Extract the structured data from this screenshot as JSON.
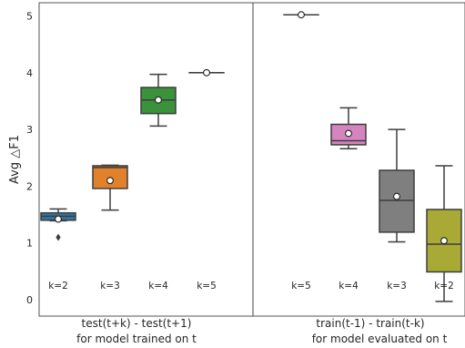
{
  "chart_data": {
    "type": "box",
    "ylabel": "Avg △F1",
    "ylim": [
      -0.3,
      5.25
    ],
    "yticks": [
      "0",
      "1",
      "2",
      "3",
      "4",
      "5"
    ],
    "panels": [
      {
        "xlabel_line1": "test(t+k) - test(t+1)",
        "xlabel_line2": "for model trained on t",
        "boxes": [
          {
            "label": "k=2",
            "color": "#3274a1",
            "whislo": 1.39,
            "q1": 1.4,
            "med": 1.47,
            "q3": 1.53,
            "whishi": 1.6,
            "mean": 1.42,
            "fliers": [
              1.1
            ]
          },
          {
            "label": "k=3",
            "color": "#e1812c",
            "whislo": 1.58,
            "q1": 1.96,
            "med": 2.33,
            "q3": 2.36,
            "whishi": 2.37,
            "mean": 2.1,
            "fliers": []
          },
          {
            "label": "k=4",
            "color": "#3a923a",
            "whislo": 3.06,
            "q1": 3.28,
            "med": 3.52,
            "q3": 3.74,
            "whishi": 3.97,
            "mean": 3.52,
            "fliers": []
          },
          {
            "label": "k=5",
            "color": "#c03d3e",
            "whislo": 4.0,
            "q1": 4.0,
            "med": 4.0,
            "q3": 4.0,
            "whishi": 4.0,
            "mean": 4.0,
            "fliers": []
          }
        ]
      },
      {
        "xlabel_line1": "train(t-1) - train(t-k)",
        "xlabel_line2": "for model evaluated on t",
        "boxes": [
          {
            "label": "k=5",
            "color": "#9372b2",
            "whislo": 5.02,
            "q1": 5.02,
            "med": 5.02,
            "q3": 5.02,
            "whishi": 5.02,
            "mean": 5.02,
            "fliers": []
          },
          {
            "label": "k=4",
            "color": "#d684bd",
            "whislo": 2.66,
            "q1": 2.73,
            "med": 2.8,
            "q3": 3.09,
            "whishi": 3.38,
            "mean": 2.93,
            "fliers": []
          },
          {
            "label": "k=3",
            "color": "#7f7f7f",
            "whislo": 1.02,
            "q1": 1.19,
            "med": 1.75,
            "q3": 2.28,
            "whishi": 3.0,
            "mean": 1.82,
            "fliers": []
          },
          {
            "label": "k=2",
            "color": "#a9aa35",
            "whislo": -0.03,
            "q1": 0.49,
            "med": 0.98,
            "q3": 1.59,
            "whishi": 2.36,
            "mean": 1.04,
            "fliers": []
          }
        ]
      }
    ]
  }
}
